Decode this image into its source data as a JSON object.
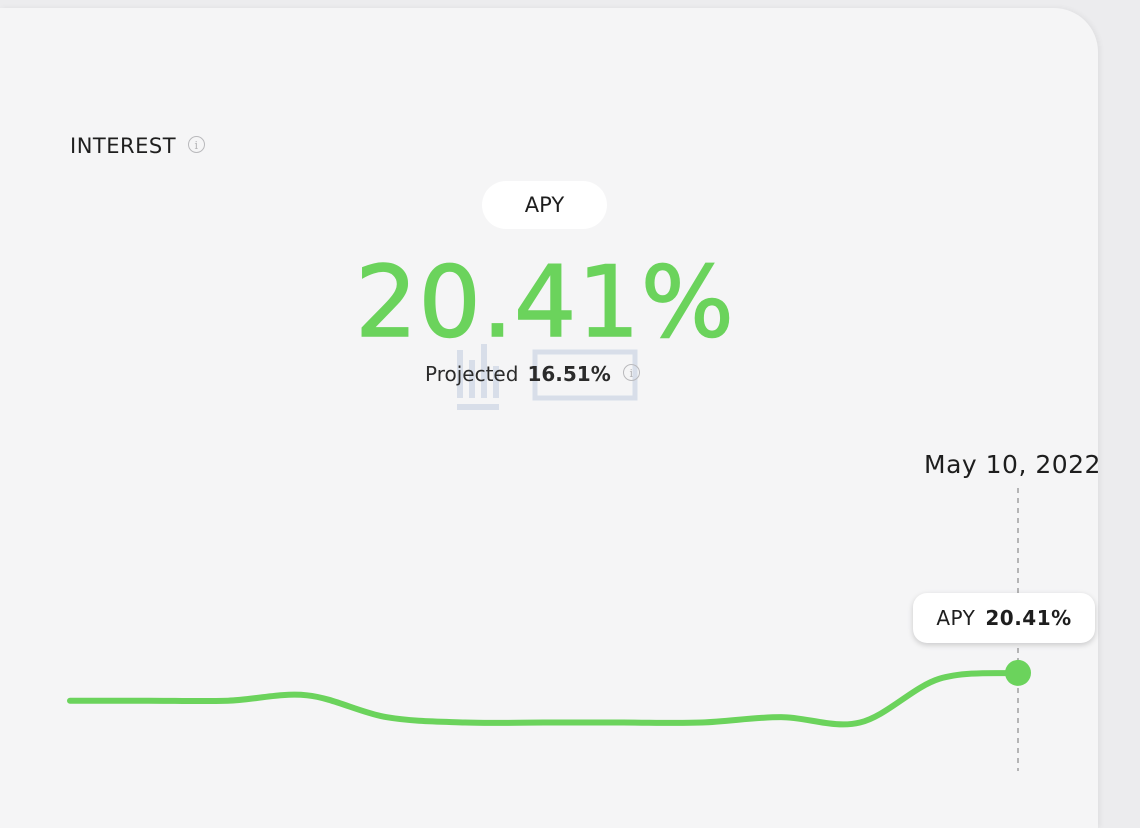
{
  "interest": {
    "title": "INTEREST",
    "info_icon": "info-icon"
  },
  "selector": {
    "label": "APY"
  },
  "apy": {
    "value": "20.41%"
  },
  "projected": {
    "label": "Projected",
    "value": "16.51%",
    "info_icon": "info-icon"
  },
  "watermark": {
    "logo": "律动 BLOCKBEATS"
  },
  "chart_data": {
    "type": "line",
    "title": "",
    "xlabel": "",
    "ylabel": "",
    "series": [
      {
        "values": [
          19.9,
          19.9,
          19.9,
          20.0,
          19.6,
          19.5,
          19.5,
          19.5,
          19.5,
          19.6,
          19.5,
          20.3,
          20.41
        ]
      }
    ],
    "hover": {
      "date": "May 10, 2022",
      "label": "APY",
      "value": "20.41%"
    },
    "colors": {
      "line": "#6bd35c",
      "cursor": "#a0a0a0"
    },
    "grid": false,
    "legend": "none"
  }
}
